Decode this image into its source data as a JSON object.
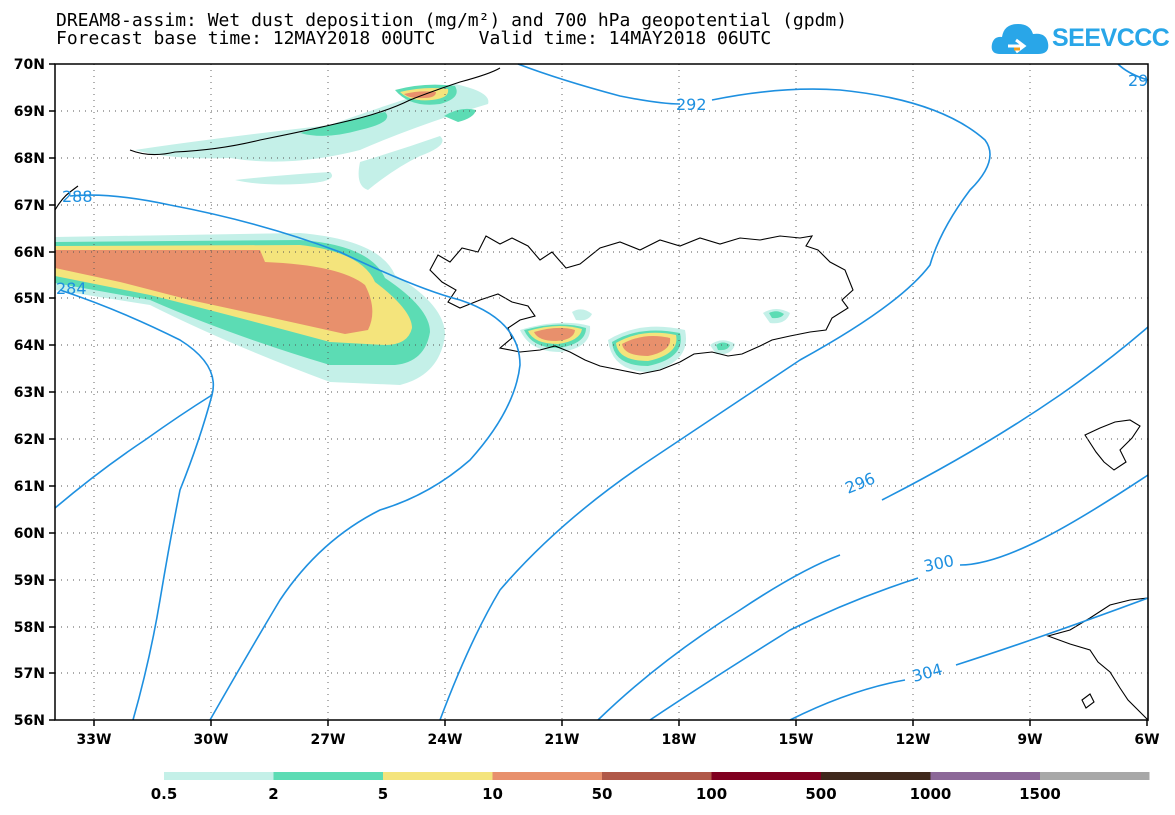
{
  "title_line1": "DREAM8-assim: Wet dust deposition (mg/m²) and 700 hPa geopotential (gpdm)",
  "title_line2": "Forecast base time: 12MAY2018 00UTC    Valid time: 14MAY2018 06UTC",
  "logo_text": "SEEVCCC",
  "lat_labels": [
    "70N",
    "69N",
    "68N",
    "67N",
    "66N",
    "65N",
    "64N",
    "63N",
    "62N",
    "61N",
    "60N",
    "59N",
    "58N",
    "57N",
    "56N"
  ],
  "lon_labels": [
    "33W",
    "30W",
    "27W",
    "24W",
    "21W",
    "18W",
    "15W",
    "12W",
    "9W",
    "6W"
  ],
  "contour_labels": [
    "292",
    "296",
    "300",
    "304",
    "288",
    "284",
    "29"
  ],
  "legend": {
    "colors": [
      "#c4f0e8",
      "#5cdcb4",
      "#f4e47c",
      "#e8906c",
      "#b05848",
      "#800020",
      "#40281c",
      "#8c6898",
      "#a8a8a8"
    ],
    "labels": [
      "0.5",
      "2",
      "5",
      "10",
      "50",
      "100",
      "500",
      "1000",
      "1500"
    ]
  },
  "colors": {
    "contour": "#1e90e0",
    "coast": "#000000"
  }
}
